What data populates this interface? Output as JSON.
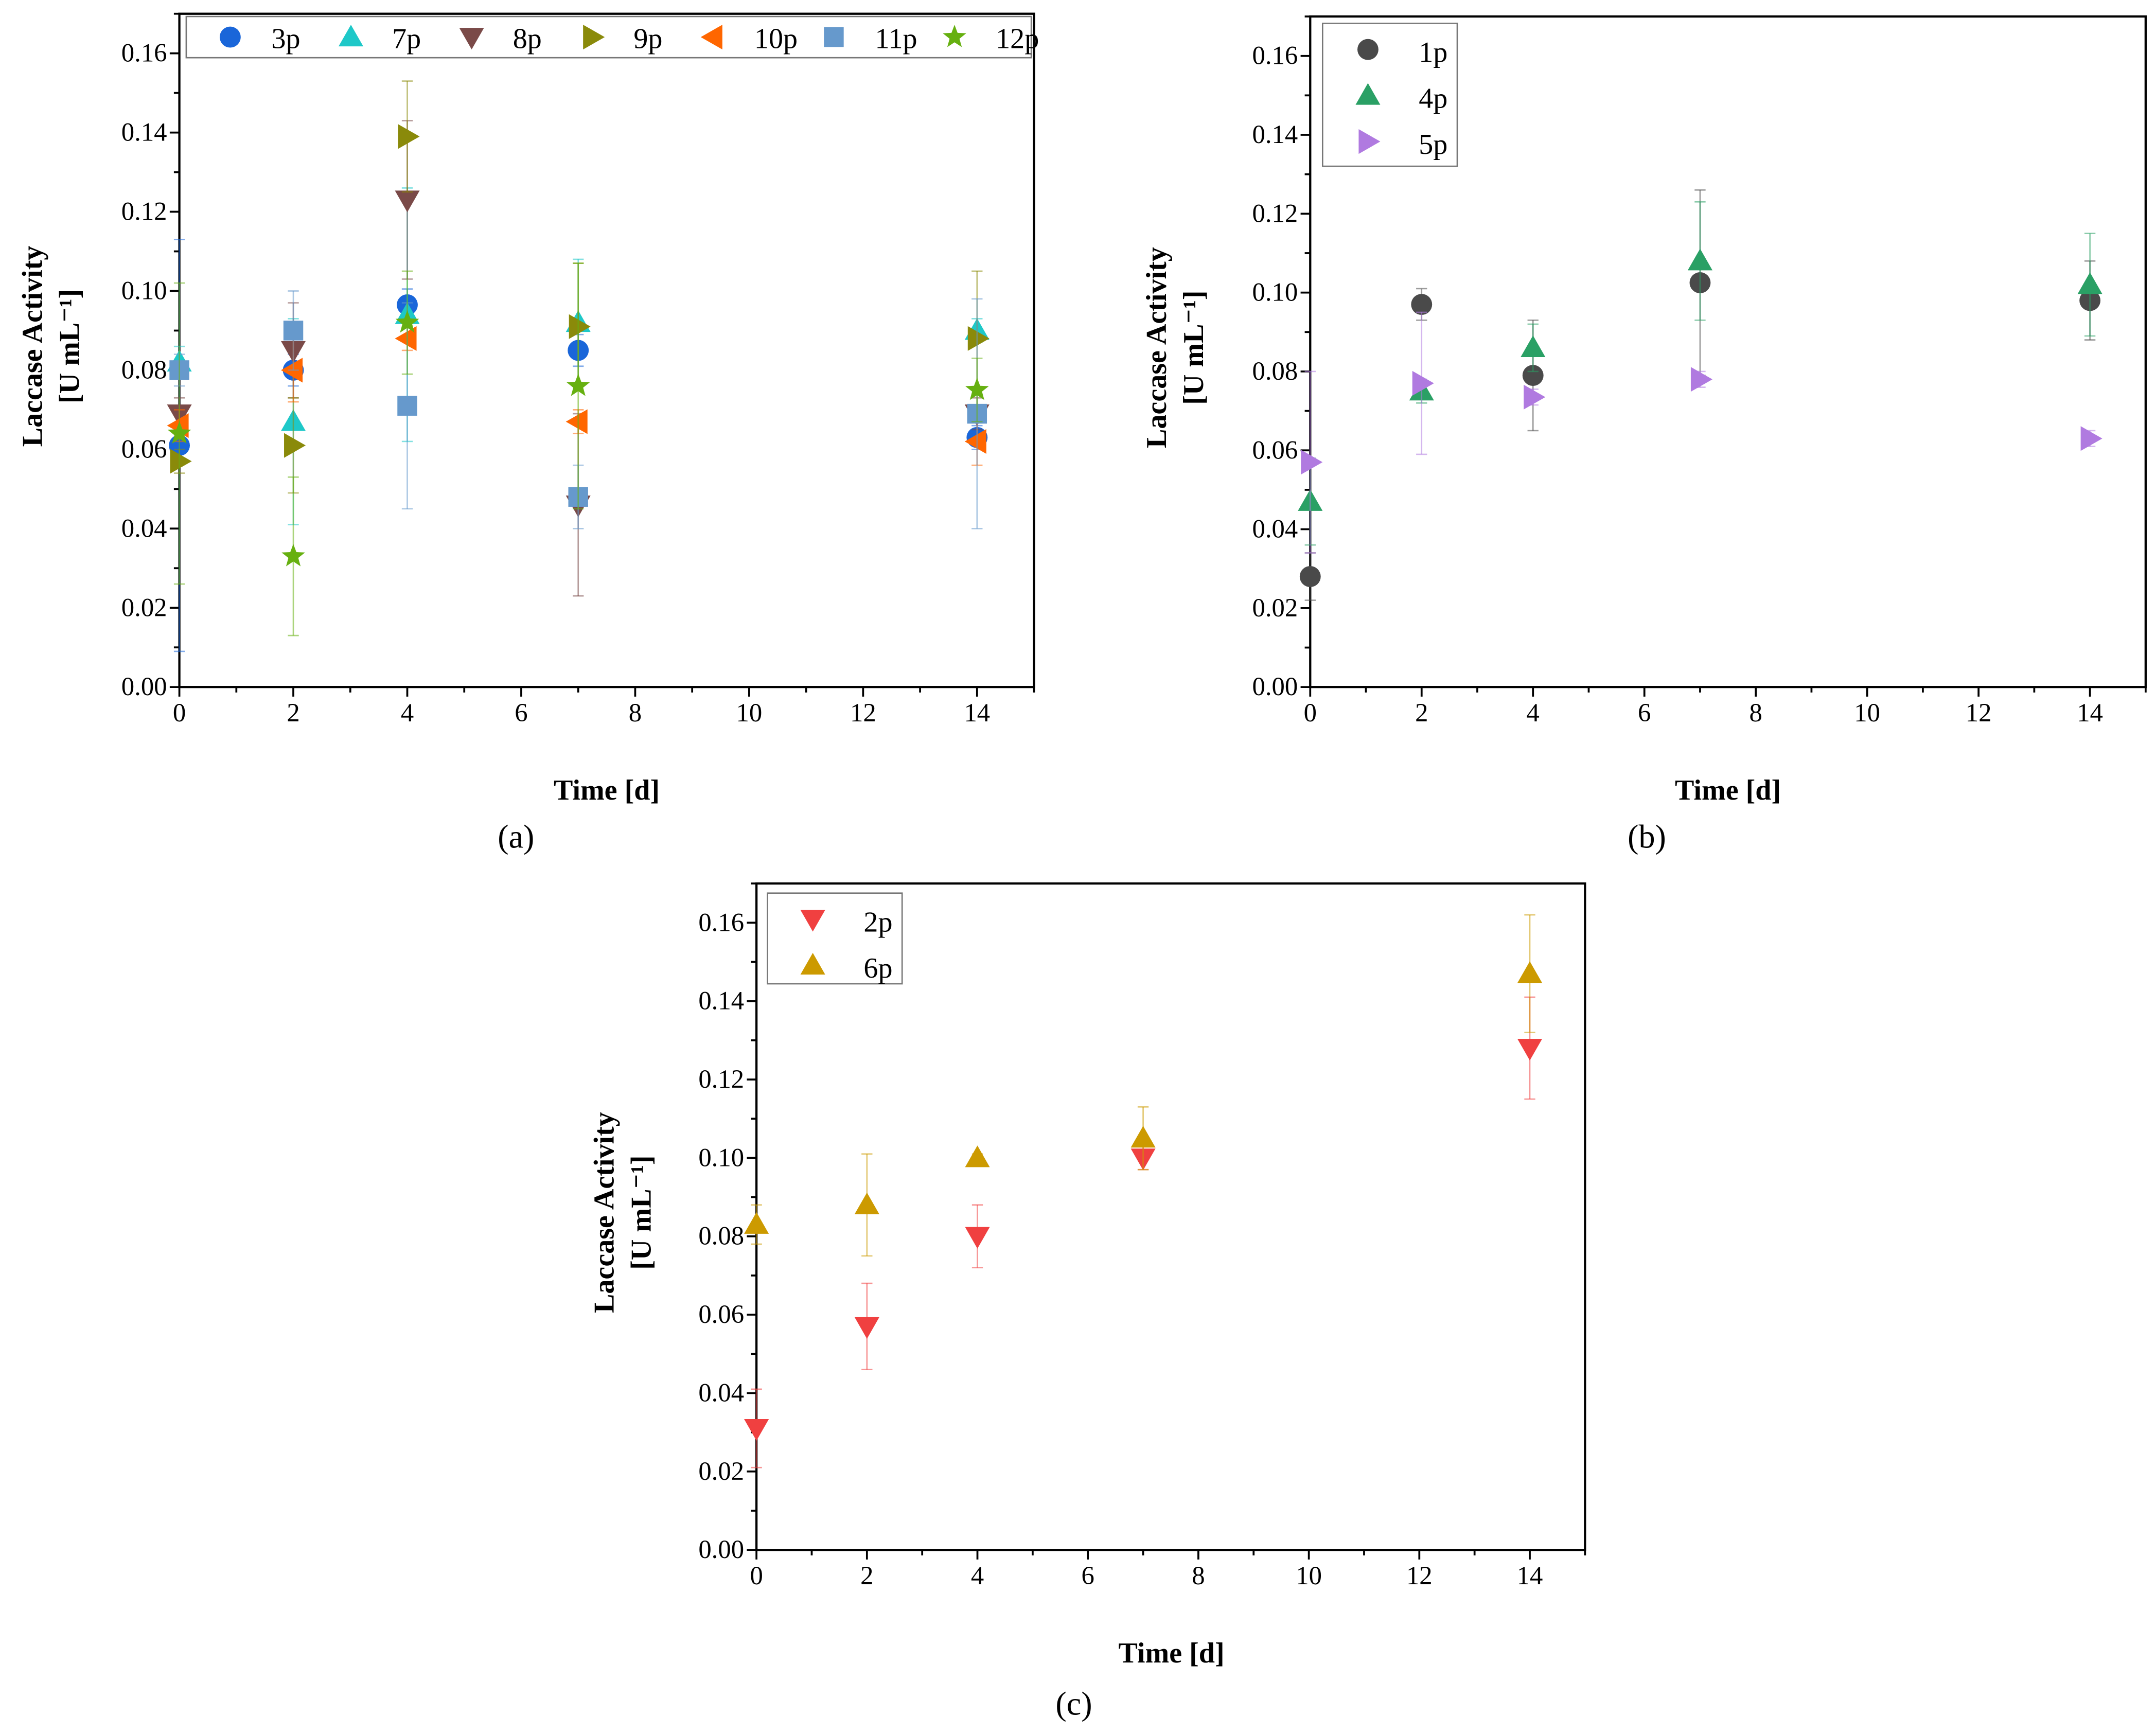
{
  "chart_data": [
    {
      "id": "a",
      "type": "scatter",
      "panel_label": "(a)",
      "xlabel": "Time [d]",
      "ylabel": [
        "Laccase Activity",
        "[U mL⁻¹]"
      ],
      "xlim": [
        0,
        15
      ],
      "ylim": [
        0,
        0.17
      ],
      "xticks": [
        "0",
        "2",
        "4",
        "6",
        "8",
        "10",
        "12",
        "14"
      ],
      "yticks": [
        "0.00",
        "0.02",
        "0.04",
        "0.06",
        "0.08",
        "0.10",
        "0.12",
        "0.14",
        "0.16"
      ],
      "legend_position": "top (horizontal)",
      "x": [
        0,
        2,
        4,
        7,
        14
      ],
      "series": [
        {
          "name": "3p",
          "marker": "circle",
          "color": "#1a66d9",
          "values": [
            0.061,
            0.08,
            0.0965,
            0.085,
            0.063
          ],
          "err": [
            0.052,
            0.004,
            0.004,
            0.004,
            0.003
          ]
        },
        {
          "name": "7p",
          "marker": "triangle-up",
          "color": "#1ec8c8",
          "values": [
            0.082,
            0.067,
            0.094,
            0.092,
            0.09
          ],
          "err": [
            0.004,
            0.026,
            0.032,
            0.016,
            0.003
          ]
        },
        {
          "name": "8p",
          "marker": "triangle-down",
          "color": "#7a4a48",
          "values": [
            0.069,
            0.085,
            0.123,
            0.046,
            0.069
          ],
          "err": [
            0.004,
            0.012,
            0.02,
            0.023,
            0.004
          ]
        },
        {
          "name": "9p",
          "marker": "triangle-right",
          "color": "#8a8a0a",
          "values": [
            0.057,
            0.061,
            0.139,
            0.091,
            0.088
          ],
          "err": [
            0.003,
            0.012,
            0.014,
            0.016,
            0.017
          ]
        },
        {
          "name": "10p",
          "marker": "triangle-left",
          "color": "#ff6600",
          "values": [
            0.066,
            0.08,
            0.088,
            0.067,
            0.062
          ],
          "err": [
            0.004,
            0.008,
            0.003,
            0.003,
            0.006
          ]
        },
        {
          "name": "11p",
          "marker": "square",
          "color": "#6699cc",
          "values": [
            0.08,
            0.09,
            0.071,
            0.048,
            0.069
          ],
          "err": [
            0.004,
            0.01,
            0.026,
            0.008,
            0.029
          ]
        },
        {
          "name": "12p",
          "marker": "star",
          "color": "#66b010",
          "values": [
            0.064,
            0.033,
            0.092,
            0.076,
            0.075
          ],
          "err": [
            0.038,
            0.02,
            0.013,
            0.031,
            0.008
          ]
        }
      ]
    },
    {
      "id": "b",
      "type": "scatter",
      "panel_label": "(b)",
      "xlabel": "Time [d]",
      "ylabel": [
        "Laccase Activity",
        "[U mL⁻¹]"
      ],
      "xlim": [
        0,
        15
      ],
      "ylim": [
        0,
        0.17
      ],
      "xticks": [
        "0",
        "2",
        "4",
        "6",
        "8",
        "10",
        "12",
        "14"
      ],
      "yticks": [
        "0.00",
        "0.02",
        "0.04",
        "0.06",
        "0.08",
        "0.10",
        "0.12",
        "0.14",
        "0.16"
      ],
      "legend_position": "top-left",
      "x": [
        0,
        2,
        4,
        7,
        14
      ],
      "series": [
        {
          "name": "1p",
          "marker": "circle",
          "color": "#4a4a4a",
          "values": [
            0.028,
            0.097,
            0.079,
            0.1025,
            0.098
          ],
          "err": [
            0.006,
            0.004,
            0.014,
            0.0235,
            0.01
          ]
        },
        {
          "name": "4p",
          "marker": "triangle-up",
          "color": "#2aa065",
          "values": [
            0.047,
            0.075,
            0.086,
            0.108,
            0.102
          ],
          "err": [
            0.011,
            0.003,
            0.006,
            0.015,
            0.013
          ]
        },
        {
          "name": "5p",
          "marker": "triangle-right",
          "color": "#b07ae0",
          "values": [
            0.057,
            0.077,
            0.0735,
            0.078,
            0.063
          ],
          "err": [
            0.023,
            0.018,
            0.002,
            0.002,
            0.002
          ]
        }
      ]
    },
    {
      "id": "c",
      "type": "scatter",
      "panel_label": "(c)",
      "xlabel": "Time [d]",
      "ylabel": [
        "Laccase Activity",
        "[U mL⁻¹]"
      ],
      "xlim": [
        0,
        15
      ],
      "ylim": [
        0,
        0.17
      ],
      "xticks": [
        "0",
        "2",
        "4",
        "6",
        "8",
        "10",
        "12",
        "14"
      ],
      "yticks": [
        "0.00",
        "0.02",
        "0.04",
        "0.06",
        "0.08",
        "0.10",
        "0.12",
        "0.14",
        "0.16"
      ],
      "legend_position": "top-left",
      "x": [
        0,
        2,
        4,
        7,
        14
      ],
      "series": [
        {
          "name": "2p",
          "marker": "triangle-down",
          "color": "#f04040",
          "values": [
            0.031,
            0.057,
            0.08,
            0.1,
            0.128
          ],
          "err": [
            0.01,
            0.011,
            0.008,
            0.003,
            0.013
          ]
        },
        {
          "name": "6p",
          "marker": "triangle-up",
          "color": "#cc9a00",
          "values": [
            0.083,
            0.088,
            0.1,
            0.105,
            0.147
          ],
          "err": [
            0.005,
            0.013,
            0.001,
            0.008,
            0.015
          ]
        }
      ]
    }
  ]
}
